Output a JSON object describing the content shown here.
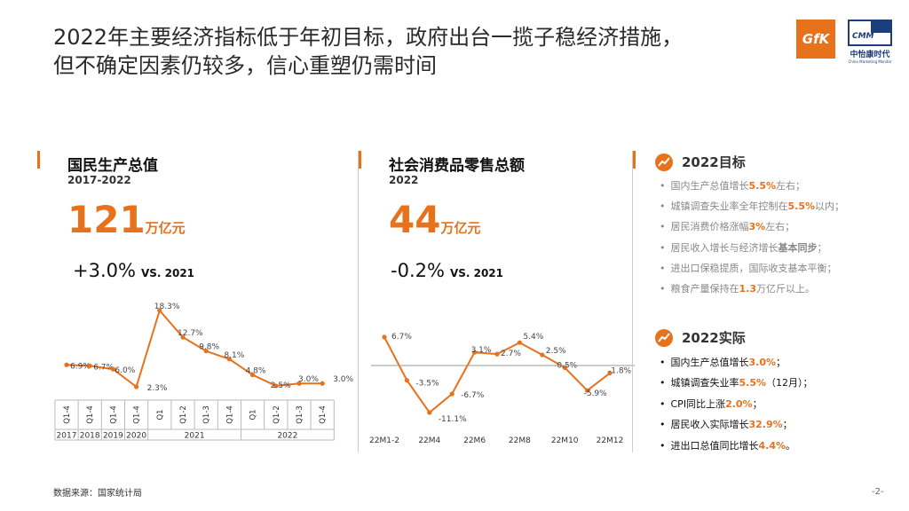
{
  "title": {
    "line1": "2022年主要经济指标低于年初目标，政府出台一揽子稳经济措施，",
    "line2": "但不确定因素仍较多，信心重塑仍需时间"
  },
  "logos": {
    "gfk": "GfK",
    "cmm": "CMM",
    "cmm_cn": "中怡康时代",
    "cmm_en": "China Marketing Monitor"
  },
  "gdp": {
    "title": "国民生产总值",
    "period": "2017-2022",
    "value": "121",
    "unit": "万亿元",
    "growth": "+3.0%",
    "vs": "VS. 2021"
  },
  "retail": {
    "title": "社会消费品零售总额",
    "period": "2022",
    "value": "44",
    "unit": "万亿元",
    "growth": "-0.2%",
    "vs": "VS. 2021"
  },
  "chart_data": [
    {
      "type": "line",
      "x": [
        "2017 Q1-4",
        "2018 Q1-4",
        "2019 Q1-4",
        "2020 Q1-4",
        "2021 Q1",
        "2021 Q1-2",
        "2021 Q1-3",
        "2021 Q1-4",
        "2022 Q1",
        "2022 Q1-2",
        "2022 Q1-3",
        "2022 Q1-4"
      ],
      "values": [
        6.9,
        6.7,
        6.0,
        2.3,
        18.3,
        12.7,
        9.8,
        8.1,
        4.8,
        2.5,
        3.0,
        3.0
      ],
      "labels": [
        "6.9%",
        "6.7%",
        "6.0%",
        "2.3%",
        "18.3%",
        "12.7%",
        "9.8%",
        "8.1%",
        "4.8%",
        "2.5%",
        "3.0%",
        "3.0%"
      ],
      "tick_labels": [
        "Q1-4",
        "Q1-4",
        "Q1-4",
        "Q1-4",
        "Q1",
        "Q1-2",
        "Q1-3",
        "Q1-4",
        "Q1",
        "Q1-2",
        "Q1-3",
        "Q1-4"
      ],
      "groups": [
        {
          "label": "2017",
          "span": 1
        },
        {
          "label": "2018",
          "span": 1
        },
        {
          "label": "2019",
          "span": 1
        },
        {
          "label": "2020",
          "span": 1
        },
        {
          "label": "2021",
          "span": 4
        },
        {
          "label": "2022",
          "span": 4
        }
      ],
      "color": "#e8711c"
    },
    {
      "type": "line",
      "x": [
        "22M1-2",
        "22M3",
        "22M4",
        "22M5",
        "22M6",
        "22M7",
        "22M8",
        "22M9",
        "22M10",
        "22M11",
        "22M12"
      ],
      "values": [
        6.7,
        -3.5,
        -11.1,
        -6.7,
        3.1,
        2.7,
        5.4,
        2.5,
        -0.5,
        -5.9,
        -1.8
      ],
      "labels": [
        "6.7%",
        "-3.5%",
        "-11.1%",
        "-6.7%",
        "3.1%",
        "2.7%",
        "5.4%",
        "2.5%",
        "-0.5%",
        "-5.9%",
        "-1.8%"
      ],
      "tick_labels": [
        "22M1-2",
        "22M4",
        "22M6",
        "22M8",
        "22M10",
        "22M12"
      ],
      "color": "#e8711c"
    }
  ],
  "goals": {
    "heading": "2022目标",
    "items": [
      [
        {
          "t": "国内生产总值增长"
        },
        {
          "t": "5.5%",
          "h": true
        },
        {
          "t": "左右；"
        }
      ],
      [
        {
          "t": "城镇调查失业率全年控制在"
        },
        {
          "t": "5.5%",
          "h": true
        },
        {
          "t": "以内；"
        }
      ],
      [
        {
          "t": "居民消费价格涨幅"
        },
        {
          "t": "3%",
          "h": true
        },
        {
          "t": "左右；"
        }
      ],
      [
        {
          "t": "居民收入增长与经济增长"
        },
        {
          "t": "基本同步",
          "b": true
        },
        {
          "t": "；"
        }
      ],
      [
        {
          "t": "进出口保稳提质，国际收支基本平衡；"
        }
      ],
      [
        {
          "t": "粮食产量保持在"
        },
        {
          "t": "1.3",
          "h": true
        },
        {
          "t": "万亿斤以上。"
        }
      ]
    ]
  },
  "actual": {
    "heading": "2022实际",
    "items": [
      [
        {
          "t": "国内生产总值增长"
        },
        {
          "t": "3.0%",
          "h": true
        },
        {
          "t": "；"
        }
      ],
      [
        {
          "t": "城镇调查失业率"
        },
        {
          "t": "5.5%",
          "h": true
        },
        {
          "t": "（12月）；"
        }
      ],
      [
        {
          "t": "CPI同比上涨"
        },
        {
          "t": "2.0%",
          "h": true
        },
        {
          "t": "；"
        }
      ],
      [
        {
          "t": "居民收入实际增长"
        },
        {
          "t": "32.9%",
          "h": true
        },
        {
          "t": "；"
        }
      ],
      [
        {
          "t": "进出口总值同比增长"
        },
        {
          "t": "4.4%",
          "h": true
        },
        {
          "t": "。"
        }
      ]
    ]
  },
  "footer": {
    "source": "数据来源：国家统计局",
    "page": "-2-"
  }
}
